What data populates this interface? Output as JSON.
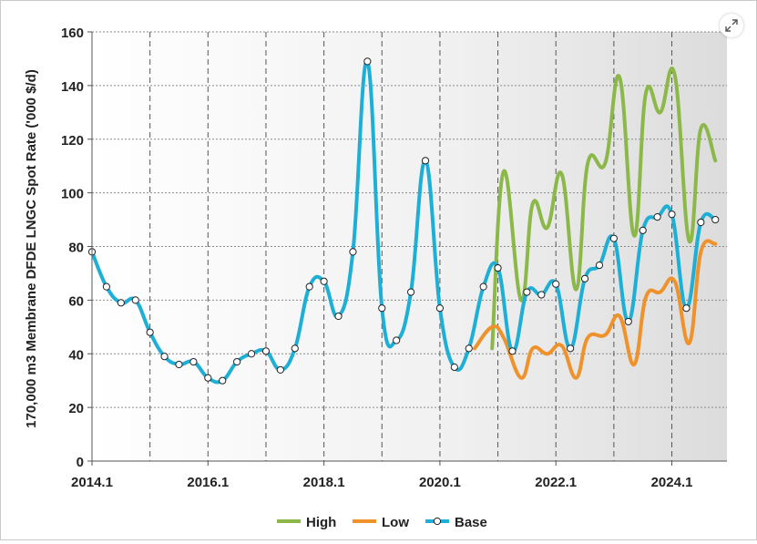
{
  "chart_data": {
    "type": "line",
    "title": "",
    "xlabel": "",
    "ylabel": "170,000 m3 Membrane DFDE LNGC Spot Rate ('000 $/d)",
    "ylim": [
      0,
      160
    ],
    "y_ticks": [
      "0",
      "20",
      "40",
      "60",
      "80",
      "100",
      "120",
      "140",
      "160"
    ],
    "x_ticks": [
      "2014.1",
      "2016.1",
      "2018.1",
      "2020.1",
      "2022.1",
      "2024.1"
    ],
    "x_tick_values": [
      2014.0,
      2016.0,
      2018.0,
      2020.0,
      2022.0,
      2024.0
    ],
    "x_gridlines": [
      2015.0,
      2016.0,
      2017.0,
      2018.0,
      2019.0,
      2020.0,
      2021.0,
      2022.0,
      2023.0,
      2024.0
    ],
    "grid": true,
    "legend_position": "bottom",
    "series": [
      {
        "name": "High",
        "color": "#8CB84A",
        "marker": false,
        "x": [
          2020.9,
          2021.1,
          2021.4,
          2021.6,
          2021.85,
          2022.1,
          2022.35,
          2022.55,
          2022.85,
          2023.1,
          2023.35,
          2023.55,
          2023.8,
          2024.05,
          2024.3,
          2024.5,
          2024.75
        ],
        "values": [
          42,
          108,
          60,
          96,
          87,
          107,
          64,
          111,
          111,
          143,
          84,
          137,
          130,
          144,
          82,
          124,
          112
        ]
      },
      {
        "name": "Low",
        "color": "#F0922B",
        "marker": false,
        "x": [
          2020.6,
          2020.9,
          2021.1,
          2021.4,
          2021.6,
          2021.85,
          2022.1,
          2022.35,
          2022.55,
          2022.85,
          2023.1,
          2023.35,
          2023.55,
          2023.8,
          2024.05,
          2024.3,
          2024.5,
          2024.75
        ],
        "values": [
          42,
          50,
          46,
          31,
          42,
          40,
          43,
          31,
          46,
          47,
          54,
          36,
          61,
          63,
          67,
          44,
          78,
          81
        ]
      },
      {
        "name": "Base",
        "color": "#1EAFD6",
        "marker": true,
        "x": [
          2014.0,
          2014.25,
          2014.5,
          2014.75,
          2015.0,
          2015.25,
          2015.5,
          2015.75,
          2016.0,
          2016.25,
          2016.5,
          2016.75,
          2017.0,
          2017.25,
          2017.5,
          2017.75,
          2018.0,
          2018.25,
          2018.5,
          2018.75,
          2019.0,
          2019.25,
          2019.5,
          2019.75,
          2020.0,
          2020.25,
          2020.5,
          2020.75,
          2021.0,
          2021.25,
          2021.5,
          2021.75,
          2022.0,
          2022.25,
          2022.5,
          2022.75,
          2023.0,
          2023.25,
          2023.5,
          2023.75,
          2024.0,
          2024.25,
          2024.5,
          2024.75
        ],
        "values": [
          78,
          65,
          59,
          60,
          48,
          39,
          36,
          37,
          31,
          30,
          37,
          40,
          41,
          34,
          42,
          65,
          67,
          54,
          78,
          149,
          57,
          45,
          63,
          112,
          57,
          35,
          42,
          65,
          72,
          41,
          63,
          62,
          66,
          42,
          68,
          73,
          83,
          52,
          86,
          91,
          92,
          57,
          89,
          90
        ]
      }
    ]
  }
}
